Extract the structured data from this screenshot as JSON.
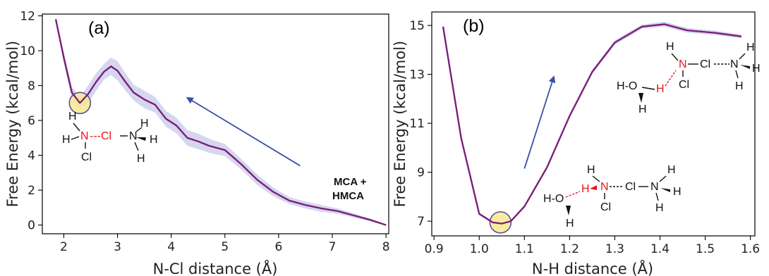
{
  "chart_data": [
    {
      "type": "line",
      "panel_label": "(a)",
      "xlabel": "N-Cl distance (Å)",
      "ylabel": "Free Energy (kcal/mol)",
      "xlim": [
        1.6,
        8.05
      ],
      "ylim": [
        -0.5,
        12.1
      ],
      "xticks": [
        2,
        3,
        4,
        5,
        6,
        7,
        8
      ],
      "yticks": [
        0,
        2,
        4,
        6,
        8,
        10,
        12
      ],
      "series": [
        {
          "color": "#7b1e7a",
          "band_color": "#c7c9ea",
          "x": [
            1.85,
            2.0,
            2.15,
            2.3,
            2.45,
            2.6,
            2.75,
            2.88,
            3.0,
            3.15,
            3.3,
            3.5,
            3.7,
            3.9,
            4.1,
            4.3,
            4.5,
            4.7,
            5.0,
            5.3,
            5.6,
            5.9,
            6.2,
            6.5,
            6.8,
            7.1,
            7.4,
            7.7,
            8.0
          ],
          "y": [
            11.8,
            9.6,
            7.6,
            7.0,
            7.5,
            8.2,
            8.8,
            9.1,
            8.85,
            8.2,
            7.6,
            7.2,
            6.9,
            6.1,
            5.7,
            5.0,
            4.8,
            4.55,
            4.3,
            3.5,
            2.6,
            1.9,
            1.4,
            1.15,
            0.95,
            0.8,
            0.55,
            0.3,
            0.0
          ],
          "band": [
            0.15,
            0.3,
            0.35,
            0.3,
            0.5,
            0.5,
            0.45,
            0.5,
            0.55,
            0.5,
            0.45,
            0.5,
            0.45,
            0.45,
            0.45,
            0.45,
            0.45,
            0.4,
            0.35,
            0.3,
            0.3,
            0.25,
            0.2,
            0.2,
            0.2,
            0.15,
            0.12,
            0.08,
            0.04
          ]
        }
      ],
      "highlight": {
        "x": 2.3,
        "y": 7.0,
        "color": "#f7e98e"
      },
      "arrow": {
        "from": [
          6.4,
          3.4
        ],
        "to": [
          4.3,
          7.3
        ],
        "color": "#3a4fa8"
      },
      "annotation": [
        "MCA +",
        "HMCA"
      ],
      "molecule": {
        "red": [
          "N",
          "---Cl"
        ],
        "black": [
          "H",
          "H",
          "Cl",
          "N",
          "H",
          "H",
          "H"
        ]
      }
    },
    {
      "type": "line",
      "panel_label": "(b)",
      "xlabel": "N-H distance (Å)",
      "ylabel": "Free Energy (kcal/mol)",
      "xlim": [
        0.895,
        1.61
      ],
      "ylim": [
        6.4,
        15.55
      ],
      "xticks": [
        0.9,
        1.0,
        1.1,
        1.2,
        1.3,
        1.4,
        1.5,
        1.6
      ],
      "yticks": [
        7,
        9,
        11,
        13,
        15
      ],
      "series": [
        {
          "color": "#7b1e7a",
          "band_color": "#c7c9ea",
          "x": [
            0.92,
            0.96,
            1.0,
            1.03,
            1.05,
            1.07,
            1.1,
            1.15,
            1.2,
            1.25,
            1.3,
            1.36,
            1.41,
            1.46,
            1.52,
            1.58
          ],
          "y": [
            14.95,
            10.4,
            7.3,
            6.95,
            6.9,
            7.0,
            7.6,
            9.2,
            11.3,
            13.1,
            14.3,
            14.95,
            15.05,
            14.8,
            14.7,
            14.55
          ],
          "band": [
            0.02,
            0.05,
            0.05,
            0.05,
            0.05,
            0.05,
            0.06,
            0.06,
            0.07,
            0.08,
            0.09,
            0.09,
            0.1,
            0.1,
            0.09,
            0.08
          ]
        }
      ],
      "highlight": {
        "x": 1.047,
        "y": 6.95,
        "color": "#f7e98e"
      },
      "arrow": {
        "from": [
          1.1,
          9.15
        ],
        "to": [
          1.165,
          12.9
        ],
        "color": "#3a4fa8"
      },
      "molecules": [
        {
          "position": "top",
          "red": [
            "H",
            "N"
          ],
          "black": [
            "H",
            "H-O",
            "H",
            "Cl",
            "Cl",
            "N",
            "H",
            "H",
            "H"
          ]
        },
        {
          "position": "bottom",
          "red": [
            "H",
            "N"
          ],
          "black": [
            "H",
            "H-O",
            "H",
            "Cl",
            "Cl",
            "N",
            "H",
            "H",
            "H"
          ]
        }
      ]
    }
  ]
}
